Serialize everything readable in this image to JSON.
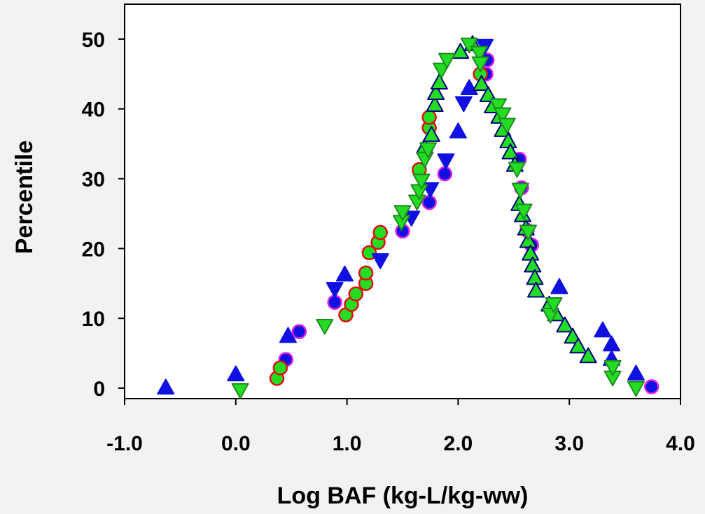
{
  "chart_data": {
    "type": "scatter",
    "title": "",
    "xlabel": "Log BAF (kg-L/kg-ww)",
    "ylabel": "Percentile",
    "xlim": [
      -1.0,
      4.0
    ],
    "ylim": [
      -1.5,
      55
    ],
    "x_ticks": [
      -1.0,
      0.0,
      1.0,
      2.0,
      3.0,
      4.0
    ],
    "x_tick_labels": [
      "-1.0",
      "0.0",
      "1.0",
      "2.0",
      "3.0",
      "4.0"
    ],
    "y_ticks": [
      0,
      10,
      20,
      30,
      40,
      50
    ],
    "y_tick_labels": [
      "0",
      "10",
      "20",
      "30",
      "40",
      "50"
    ],
    "grid": false,
    "background": "#ffffff",
    "series": [
      {
        "marker": "circle",
        "color": "#1010e0",
        "edge": "#e020e0",
        "points": [
          [
            0.45,
            4.1
          ],
          [
            0.57,
            8.1
          ],
          [
            0.89,
            12.3
          ],
          [
            1.5,
            22.5
          ],
          [
            1.74,
            26.6
          ],
          [
            1.88,
            30.7
          ],
          [
            2.25,
            45.0
          ],
          [
            2.26,
            47.0
          ],
          [
            2.55,
            32.8
          ],
          [
            2.57,
            28.7
          ],
          [
            2.62,
            22.6
          ],
          [
            2.66,
            20.5
          ],
          [
            3.74,
            0.2
          ]
        ]
      },
      {
        "marker": "circle",
        "color": "#22dd22",
        "edge": "#e01010",
        "points": [
          [
            0.37,
            1.4
          ],
          [
            0.4,
            2.9
          ],
          [
            0.99,
            10.5
          ],
          [
            1.04,
            12.0
          ],
          [
            1.08,
            13.5
          ],
          [
            1.17,
            15.0
          ],
          [
            1.17,
            16.5
          ],
          [
            1.2,
            19.4
          ],
          [
            1.28,
            20.9
          ],
          [
            1.3,
            22.3
          ],
          [
            1.65,
            31.3
          ],
          [
            1.74,
            37.3
          ],
          [
            1.74,
            38.8
          ],
          [
            2.2,
            45.0
          ]
        ]
      },
      {
        "marker": "triangle-up",
        "color": "#1010e0",
        "edge": "#1010e0",
        "points": [
          [
            -0.63,
            0.1
          ],
          [
            0.0,
            2.0
          ],
          [
            0.47,
            7.5
          ],
          [
            0.98,
            16.3
          ],
          [
            2.0,
            36.8
          ],
          [
            2.1,
            43.0
          ],
          [
            2.91,
            14.5
          ],
          [
            3.3,
            8.3
          ],
          [
            3.38,
            6.3
          ],
          [
            3.38,
            4.2
          ],
          [
            3.6,
            2.1
          ]
        ]
      },
      {
        "marker": "triangle-up",
        "color": "#22dd22",
        "edge": "#000080",
        "points": [
          [
            1.7,
            34.6
          ],
          [
            1.76,
            36.3
          ],
          [
            1.79,
            40.6
          ],
          [
            1.8,
            42.3
          ],
          [
            1.83,
            43.8
          ],
          [
            2.02,
            48.2
          ],
          [
            2.13,
            49.3
          ],
          [
            2.21,
            43.6
          ],
          [
            2.27,
            42.0
          ],
          [
            2.31,
            40.4
          ],
          [
            2.37,
            38.9
          ],
          [
            2.4,
            37.0
          ],
          [
            2.45,
            35.4
          ],
          [
            2.47,
            33.8
          ],
          [
            2.51,
            32.0
          ],
          [
            2.55,
            26.4
          ],
          [
            2.58,
            24.8
          ],
          [
            2.61,
            22.9
          ],
          [
            2.63,
            21.1
          ],
          [
            2.65,
            19.3
          ],
          [
            2.67,
            17.6
          ],
          [
            2.69,
            15.8
          ],
          [
            2.7,
            14.0
          ],
          [
            2.82,
            12.0
          ],
          [
            2.88,
            10.6
          ],
          [
            2.96,
            9.0
          ],
          [
            3.03,
            7.4
          ],
          [
            3.08,
            6.0
          ],
          [
            3.17,
            4.6
          ]
        ]
      },
      {
        "marker": "triangle-down",
        "color": "#1010e0",
        "edge": "#1010e0",
        "points": [
          [
            0.89,
            14.2
          ],
          [
            1.3,
            18.3
          ],
          [
            1.58,
            24.4
          ],
          [
            1.75,
            28.5
          ],
          [
            1.89,
            32.6
          ],
          [
            2.05,
            40.8
          ],
          [
            2.24,
            49.0
          ]
        ]
      },
      {
        "marker": "triangle-down",
        "color": "#22dd22",
        "edge": "#228822",
        "points": [
          [
            0.04,
            -0.3
          ],
          [
            0.8,
            8.9
          ],
          [
            1.49,
            23.8
          ],
          [
            1.5,
            25.2
          ],
          [
            1.63,
            26.7
          ],
          [
            1.65,
            28.2
          ],
          [
            1.67,
            29.7
          ],
          [
            1.7,
            32.8
          ],
          [
            1.73,
            34.2
          ],
          [
            1.85,
            45.6
          ],
          [
            1.9,
            47.0
          ],
          [
            2.1,
            49.2
          ],
          [
            2.19,
            48.0
          ],
          [
            2.2,
            46.5
          ],
          [
            2.36,
            40.5
          ],
          [
            2.4,
            39.2
          ],
          [
            2.44,
            37.7
          ],
          [
            2.53,
            31.4
          ],
          [
            2.56,
            28.4
          ],
          [
            2.59,
            25.4
          ],
          [
            2.63,
            22.4
          ],
          [
            2.83,
            10.5
          ],
          [
            2.86,
            12.0
          ],
          [
            3.39,
            1.5
          ],
          [
            3.39,
            3.0
          ],
          [
            3.6,
            0.0
          ]
        ]
      }
    ]
  }
}
